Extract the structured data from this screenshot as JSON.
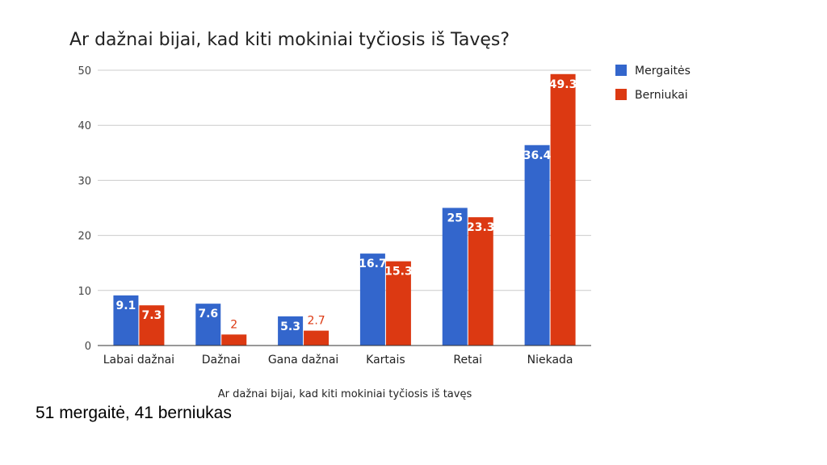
{
  "chart_data": {
    "type": "bar",
    "title": "Ar dažnai bijai, kad kiti mokiniai tyčiosis iš Tavęs?",
    "xlabel": "Ar dažnai bijai, kad kiti mokiniai tyčiosis iš tavęs",
    "ylabel": "",
    "ylim": [
      0,
      50
    ],
    "yticks": [
      0,
      10,
      20,
      30,
      40,
      50
    ],
    "grid": true,
    "legend_position": "right",
    "categories": [
      "Labai dažnai",
      "Dažnai",
      "Gana dažnai",
      "Kartais",
      "Retai",
      "Niekada"
    ],
    "series": [
      {
        "name": "Mergaitės",
        "color": "#3366cc",
        "values": [
          9.1,
          7.6,
          5.3,
          16.7,
          25,
          36.4
        ]
      },
      {
        "name": "Berniukai",
        "color": "#dc3912",
        "values": [
          7.3,
          2,
          2.7,
          15.3,
          23.3,
          49.3
        ]
      }
    ]
  },
  "footnote": "51 mergaitė, 41 berniukas"
}
